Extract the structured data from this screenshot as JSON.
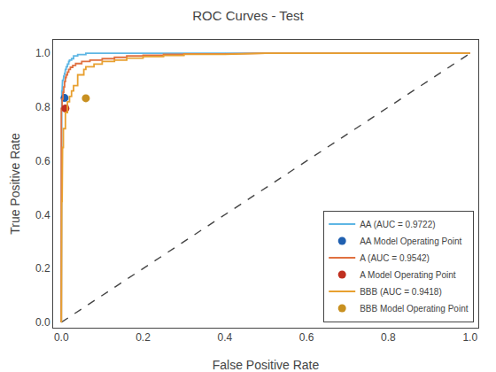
{
  "chart_data": {
    "type": "line",
    "title": "ROC Curves - Test",
    "xlabel": "False Positive Rate",
    "ylabel": "True Positive Rate",
    "xlim": [
      -0.02,
      1.02
    ],
    "ylim": [
      -0.02,
      1.05
    ],
    "xticks": [
      {
        "value": 0,
        "label": "0.0"
      },
      0.2,
      0.4,
      0.6,
      0.8,
      {
        "value": 1.0,
        "label": "1.0"
      }
    ],
    "yticks": [
      {
        "value": 0,
        "label": "0.0"
      },
      0.2,
      0.4,
      0.6,
      0.8,
      {
        "value": 1.0,
        "label": "1.0"
      }
    ],
    "grid": false,
    "legend": "lower right",
    "series": [
      {
        "type": "line",
        "color": "#444444",
        "line_style": "dashed",
        "x": [
          0,
          1
        ],
        "values": [
          0,
          1
        ]
      },
      {
        "name": "AA (AUC = 0.9722)",
        "type": "line",
        "color": "#5EB6E4",
        "line_style": "solid",
        "x": [
          0.0,
          0.0,
          0.001,
          0.001,
          0.002,
          0.002,
          0.003,
          0.003,
          0.005,
          0.005,
          0.006,
          0.006,
          0.007,
          0.007,
          0.008,
          0.008,
          0.009,
          0.009,
          0.01,
          0.01,
          0.012,
          0.012,
          0.015,
          0.015,
          0.018,
          0.018,
          0.02,
          0.02,
          0.025,
          0.025,
          0.03,
          0.03,
          0.04,
          0.04,
          0.06,
          0.06,
          0.08,
          0.08,
          0.1,
          0.15,
          0.2,
          0.3,
          0.5,
          1.0
        ],
        "values": [
          0.0,
          0.83,
          0.83,
          0.86,
          0.86,
          0.88,
          0.88,
          0.9,
          0.9,
          0.91,
          0.91,
          0.915,
          0.915,
          0.92,
          0.92,
          0.925,
          0.925,
          0.93,
          0.93,
          0.94,
          0.94,
          0.95,
          0.95,
          0.96,
          0.96,
          0.97,
          0.97,
          0.975,
          0.975,
          0.98,
          0.98,
          0.99,
          0.99,
          0.995,
          0.995,
          1.0,
          1.0,
          1.0,
          1.0,
          1.0,
          1.0,
          1.0,
          1.0,
          1.0
        ]
      },
      {
        "name": "AA Model Operating Point",
        "type": "scatter",
        "color": "#2060B0",
        "marker": "circle",
        "x": [
          0.008
        ],
        "values": [
          0.834
        ]
      },
      {
        "name": "A (AUC = 0.9542)",
        "type": "line",
        "color": "#E07040",
        "line_style": "solid",
        "x": [
          0.0,
          0.0,
          0.002,
          0.002,
          0.004,
          0.004,
          0.006,
          0.006,
          0.008,
          0.008,
          0.01,
          0.01,
          0.012,
          0.012,
          0.015,
          0.015,
          0.018,
          0.018,
          0.022,
          0.022,
          0.028,
          0.028,
          0.035,
          0.035,
          0.05,
          0.05,
          0.07,
          0.07,
          0.1,
          0.1,
          0.13,
          0.13,
          0.16,
          0.16,
          0.2,
          0.2,
          0.25,
          0.25,
          0.3,
          0.3,
          0.4,
          0.5,
          0.7,
          1.0
        ],
        "values": [
          0.0,
          0.795,
          0.795,
          0.83,
          0.83,
          0.855,
          0.855,
          0.875,
          0.875,
          0.895,
          0.895,
          0.91,
          0.91,
          0.92,
          0.92,
          0.93,
          0.93,
          0.94,
          0.94,
          0.948,
          0.948,
          0.955,
          0.955,
          0.962,
          0.962,
          0.97,
          0.97,
          0.975,
          0.975,
          0.98,
          0.98,
          0.985,
          0.985,
          0.99,
          0.99,
          0.993,
          0.993,
          0.996,
          0.996,
          0.998,
          0.998,
          1.0,
          1.0,
          1.0
        ]
      },
      {
        "name": "A Model Operating Point",
        "type": "scatter",
        "color": "#C03020",
        "marker": "circle",
        "x": [
          0.01
        ],
        "values": [
          0.795
        ]
      },
      {
        "name": "BBB (AUC = 0.9418)",
        "type": "line",
        "color": "#E8A030",
        "line_style": "solid",
        "x": [
          0.0,
          0.0,
          0.001,
          0.001,
          0.002,
          0.002,
          0.003,
          0.003,
          0.005,
          0.005,
          0.01,
          0.01,
          0.015,
          0.015,
          0.02,
          0.02,
          0.025,
          0.025,
          0.03,
          0.03,
          0.04,
          0.04,
          0.055,
          0.055,
          0.06,
          0.06,
          0.08,
          0.08,
          0.1,
          0.1,
          0.13,
          0.13,
          0.16,
          0.16,
          0.2,
          0.2,
          0.25,
          0.25,
          0.3,
          0.3,
          0.4,
          0.5,
          0.7,
          1.0
        ],
        "values": [
          0.0,
          0.3,
          0.3,
          0.45,
          0.45,
          0.55,
          0.55,
          0.65,
          0.65,
          0.72,
          0.72,
          0.78,
          0.78,
          0.82,
          0.82,
          0.84,
          0.84,
          0.86,
          0.86,
          0.88,
          0.88,
          0.92,
          0.92,
          0.94,
          0.94,
          0.95,
          0.95,
          0.96,
          0.96,
          0.97,
          0.97,
          0.975,
          0.975,
          0.982,
          0.982,
          0.988,
          0.988,
          0.992,
          0.992,
          0.996,
          0.996,
          1.0,
          1.0,
          1.0
        ]
      },
      {
        "name": "BBB Model Operating Point",
        "type": "scatter",
        "color": "#C89020",
        "marker": "circle",
        "x": [
          0.06
        ],
        "values": [
          0.833
        ]
      }
    ]
  }
}
